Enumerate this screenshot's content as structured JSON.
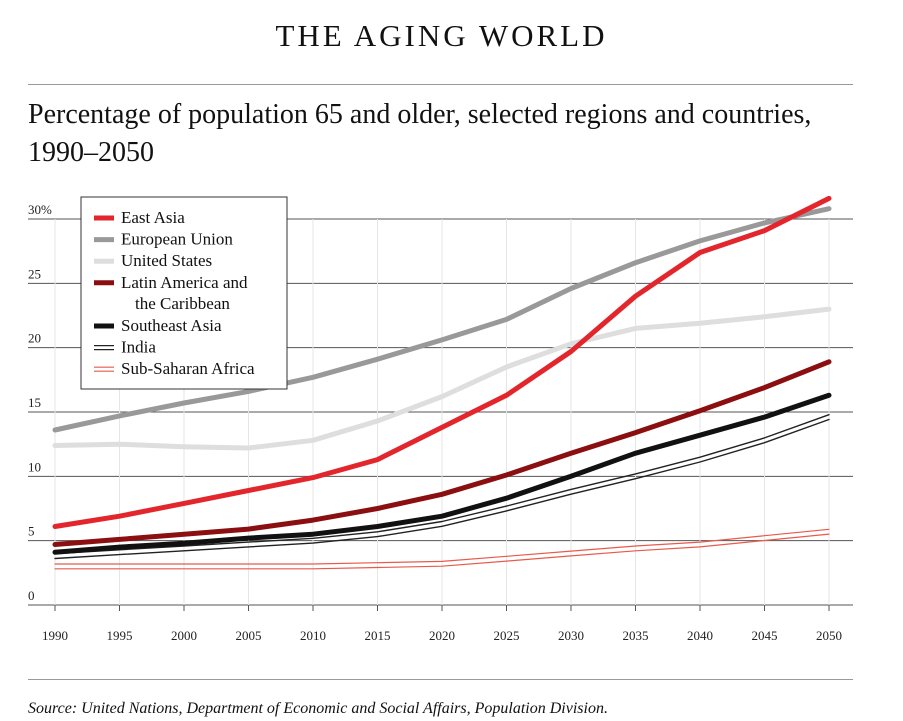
{
  "header": {
    "title": "THE AGING WORLD",
    "subtitle_line1": "Percentage of population 65 and older, selected regions and countries,",
    "subtitle_line2": "1990–2050"
  },
  "source": "Source: United Nations, Department of Economic and Social Affairs, Population Division.",
  "chart_data": {
    "type": "line",
    "title": "Percentage of population 65 and older, selected regions and countries, 1990–2050",
    "xlabel": "",
    "ylabel": "",
    "xlim": [
      1990,
      2050
    ],
    "ylim": [
      0,
      30
    ],
    "x_ticks": [
      "1990",
      "1995",
      "2000",
      "2005",
      "2010",
      "2015",
      "2020",
      "2025",
      "2030",
      "2035",
      "2040",
      "2045",
      "2050"
    ],
    "y_ticks": [
      "0",
      "5",
      "10",
      "15",
      "20",
      "25",
      "30%"
    ],
    "grid": "horizontal lines",
    "legend_position": "top-left",
    "x": [
      1990,
      1995,
      2000,
      2005,
      2010,
      2015,
      2020,
      2025,
      2030,
      2035,
      2040,
      2045,
      2050
    ],
    "series": [
      {
        "name": "East Asia",
        "color": "#e3262c",
        "style": "solid",
        "width": 5,
        "values": [
          6.1,
          6.9,
          7.9,
          8.9,
          9.9,
          11.3,
          13.8,
          16.3,
          19.7,
          24.0,
          27.4,
          29.1,
          31.6
        ]
      },
      {
        "name": "European Union",
        "color": "#999999",
        "style": "solid",
        "width": 5,
        "values": [
          13.6,
          14.7,
          15.7,
          16.6,
          17.7,
          19.1,
          20.6,
          22.2,
          24.6,
          26.6,
          28.3,
          29.7,
          30.8
        ]
      },
      {
        "name": "United States",
        "color": "#dedede",
        "style": "solid",
        "width": 5,
        "values": [
          12.4,
          12.5,
          12.3,
          12.2,
          12.8,
          14.3,
          16.2,
          18.5,
          20.3,
          21.5,
          21.9,
          22.4,
          23.0
        ]
      },
      {
        "name": "Latin America and the Caribbean",
        "color": "#8b0f10",
        "style": "solid",
        "width": 5,
        "values": [
          4.7,
          5.1,
          5.5,
          5.9,
          6.6,
          7.5,
          8.6,
          10.1,
          11.8,
          13.4,
          15.1,
          16.9,
          18.9
        ]
      },
      {
        "name": "Southeast Asia",
        "color": "#111111",
        "style": "solid",
        "width": 5,
        "values": [
          4.1,
          4.5,
          4.8,
          5.2,
          5.5,
          6.1,
          6.9,
          8.3,
          10.0,
          11.8,
          13.2,
          14.6,
          16.3
        ]
      },
      {
        "name": "India",
        "color": "#222222",
        "style": "double",
        "width": 1.4,
        "values": [
          3.8,
          4.1,
          4.4,
          4.7,
          5.0,
          5.5,
          6.3,
          7.5,
          8.8,
          10.0,
          11.3,
          12.8,
          14.6
        ]
      },
      {
        "name": "Sub-Saharan Africa",
        "color": "#e85a4c",
        "style": "double",
        "width": 1.2,
        "values": [
          3.0,
          3.0,
          3.0,
          3.0,
          3.0,
          3.1,
          3.2,
          3.6,
          4.0,
          4.4,
          4.7,
          5.2,
          5.7
        ]
      }
    ],
    "legend_labels": [
      [
        "East Asia"
      ],
      [
        "European Union"
      ],
      [
        "United States"
      ],
      [
        "Latin America and",
        "the Caribbean"
      ],
      [
        "Southeast Asia"
      ],
      [
        "India"
      ],
      [
        "Sub-Saharan Africa"
      ]
    ]
  }
}
